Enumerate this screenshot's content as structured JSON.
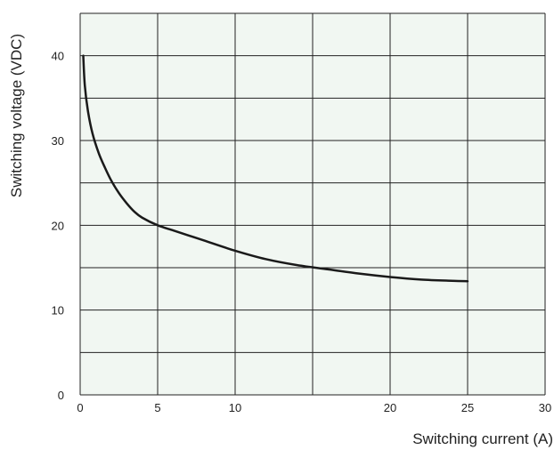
{
  "chart_data": {
    "type": "line",
    "title": "",
    "xlabel": "Switching current (A)",
    "ylabel": "Switching voltage (VDC)",
    "xlim": [
      0,
      30
    ],
    "ylim": [
      0,
      45
    ],
    "xticks": [
      0,
      5,
      10,
      20,
      25,
      30
    ],
    "xtick_labels": [
      "0",
      "5",
      "10",
      "20",
      "25",
      "30"
    ],
    "yticks": [
      0,
      10,
      20,
      30,
      40
    ],
    "ytick_labels": [
      "0",
      "10",
      "20",
      "30",
      "40"
    ],
    "grid": true,
    "legend": "none",
    "colors": {
      "plot_background": "#f1f7f2",
      "grid": "#222222",
      "line": "#1a1a1a"
    },
    "series": [
      {
        "x": [
          0.2,
          0.3,
          0.5,
          0.8,
          1.2,
          1.6,
          2.0,
          2.5,
          3.0,
          3.5,
          4.0,
          5.0,
          6.0,
          7.0,
          8.0,
          10.0,
          12.0,
          14.0,
          16.0,
          18.0,
          20.0,
          22.0,
          24.0,
          25.0
        ],
        "y": [
          40.0,
          36.5,
          33.5,
          30.8,
          28.5,
          26.8,
          25.3,
          23.8,
          22.6,
          21.6,
          20.9,
          20.0,
          19.4,
          18.8,
          18.2,
          17.0,
          16.0,
          15.3,
          14.8,
          14.3,
          13.9,
          13.6,
          13.45,
          13.4
        ]
      }
    ]
  }
}
